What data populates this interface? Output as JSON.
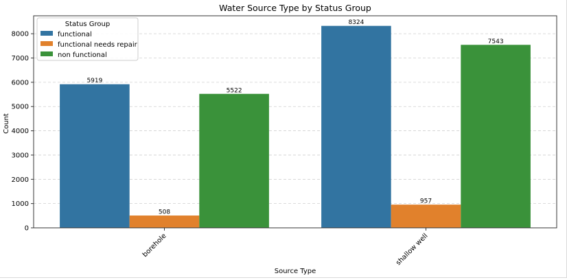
{
  "chart_data": {
    "type": "bar",
    "title": "Water Source Type by Status Group",
    "xlabel": "Source Type",
    "ylabel": "Count",
    "categories": [
      "borehole",
      "shallow well"
    ],
    "series": [
      {
        "name": "functional",
        "values": [
          5919,
          8324
        ],
        "color": "#3274a1"
      },
      {
        "name": "functional needs repair",
        "values": [
          508,
          957
        ],
        "color": "#e1812c"
      },
      {
        "name": "non functional",
        "values": [
          5522,
          7543
        ],
        "color": "#3a923a"
      }
    ],
    "ylim": [
      0,
      8740
    ],
    "yticks": [
      0,
      1000,
      2000,
      3000,
      4000,
      5000,
      6000,
      7000,
      8000
    ],
    "grid": "y-dashed",
    "legend": {
      "title": "Status Group",
      "placement": "top-left"
    },
    "xtick_rotation": 45
  }
}
